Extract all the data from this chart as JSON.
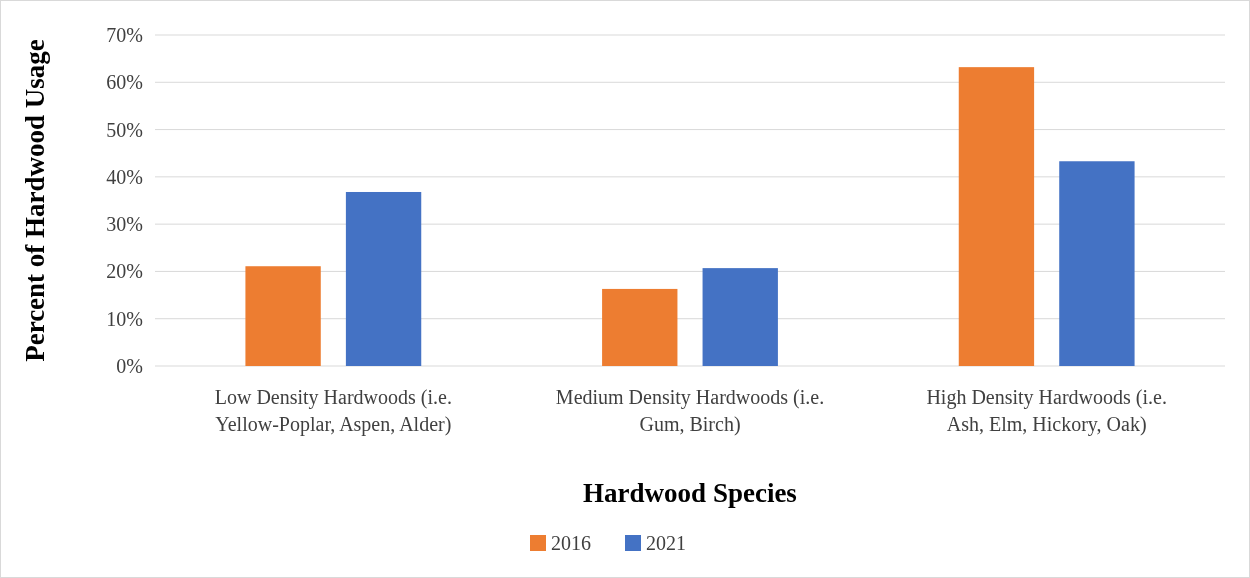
{
  "chart_data": {
    "type": "bar",
    "xlabel": "Hardwood Species",
    "ylabel": "Percent of Hardwood Usage",
    "categories": [
      "Low Density Hardwoods (i.e. Yellow-Poplar, Aspen, Alder)",
      "Medium Density Hardwoods (i.e. Gum, Birch)",
      "High Density Hardwoods (i.e. Ash, Elm, Hickory, Oak)"
    ],
    "series": [
      {
        "name": "2016",
        "color": "#ed7d31",
        "values": [
          21.1,
          16.3,
          63.2
        ]
      },
      {
        "name": "2021",
        "color": "#4472c4",
        "values": [
          36.8,
          20.7,
          43.3
        ]
      }
    ],
    "ylim": [
      0,
      70
    ],
    "yticks": [
      {
        "value": 0,
        "label": "0%"
      },
      {
        "value": 10,
        "label": "10%"
      },
      {
        "value": 20,
        "label": "20%"
      },
      {
        "value": 30,
        "label": "30%"
      },
      {
        "value": 40,
        "label": "40%"
      },
      {
        "value": 50,
        "label": "50%"
      },
      {
        "value": 60,
        "label": "60%"
      },
      {
        "value": 70,
        "label": "70%"
      }
    ],
    "grid": "y",
    "legend": "bottom"
  }
}
